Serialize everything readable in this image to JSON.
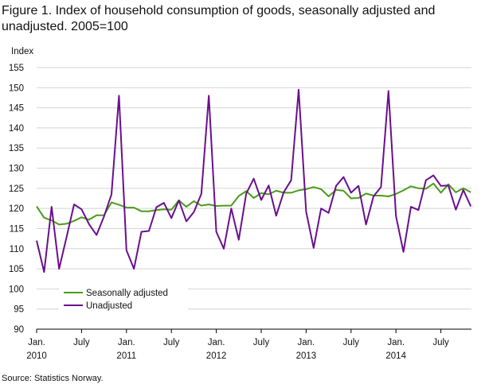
{
  "title": "Figure 1. Index of household consumption of goods, seasonally adjusted and unadjusted. 2005=100",
  "source": "Source: Statistics Norway.",
  "chart_data": {
    "type": "line",
    "title": "Figure 1. Index of household consumption of goods, seasonally adjusted and unadjusted. 2005=100",
    "ylabel": "Index",
    "xlabel": "",
    "ylim": [
      90,
      155
    ],
    "yticks": [
      90,
      95,
      100,
      105,
      110,
      115,
      120,
      125,
      130,
      135,
      140,
      145,
      150,
      155
    ],
    "grid": "horizontal",
    "legend": "bottom-left",
    "x_start": "2010-01",
    "x": [
      "2010-01",
      "2010-02",
      "2010-03",
      "2010-04",
      "2010-05",
      "2010-06",
      "2010-07",
      "2010-08",
      "2010-09",
      "2010-10",
      "2010-11",
      "2010-12",
      "2011-01",
      "2011-02",
      "2011-03",
      "2011-04",
      "2011-05",
      "2011-06",
      "2011-07",
      "2011-08",
      "2011-09",
      "2011-10",
      "2011-11",
      "2011-12",
      "2012-01",
      "2012-02",
      "2012-03",
      "2012-04",
      "2012-05",
      "2012-06",
      "2012-07",
      "2012-08",
      "2012-09",
      "2012-10",
      "2012-11",
      "2012-12",
      "2013-01",
      "2013-02",
      "2013-03",
      "2013-04",
      "2013-05",
      "2013-06",
      "2013-07",
      "2013-08",
      "2013-09",
      "2013-10",
      "2013-11",
      "2013-12",
      "2014-01",
      "2014-02",
      "2014-03",
      "2014-04",
      "2014-05",
      "2014-06",
      "2014-07",
      "2014-08",
      "2014-09",
      "2014-10",
      "2014-11"
    ],
    "x_tick_labels": [
      {
        "line1": "Jan.",
        "line2": "2010",
        "index": 0
      },
      {
        "line1": "July",
        "line2": "",
        "index": 6
      },
      {
        "line1": "Jan.",
        "line2": "2011",
        "index": 12
      },
      {
        "line1": "July",
        "line2": "",
        "index": 18
      },
      {
        "line1": "Jan.",
        "line2": "2012",
        "index": 24
      },
      {
        "line1": "July",
        "line2": "",
        "index": 30
      },
      {
        "line1": "Jan.",
        "line2": "2013",
        "index": 36
      },
      {
        "line1": "July",
        "line2": "",
        "index": 42
      },
      {
        "line1": "Jan.",
        "line2": "2014",
        "index": 48
      },
      {
        "line1": "July",
        "line2": "",
        "index": 54
      }
    ],
    "series": [
      {
        "name": "Seasonally adjusted",
        "color": "#4e9a1a",
        "values": [
          120.5,
          117.7,
          117.0,
          116.0,
          116.2,
          116.9,
          117.8,
          117.2,
          118.3,
          118.3,
          121.5,
          120.9,
          120.2,
          120.2,
          119.3,
          119.3,
          119.6,
          119.8,
          119.7,
          122.0,
          120.4,
          121.8,
          120.7,
          121.0,
          120.6,
          120.7,
          120.7,
          123.1,
          124.3,
          122.6,
          123.8,
          123.5,
          124.4,
          123.9,
          123.9,
          124.5,
          124.8,
          125.3,
          124.8,
          123.0,
          124.6,
          124.4,
          122.5,
          122.6,
          123.7,
          123.2,
          123.2,
          123.0,
          123.6,
          124.5,
          125.5,
          125.0,
          124.9,
          126.2,
          123.9,
          126.0,
          124.0,
          125.0,
          124.0
        ]
      },
      {
        "name": "Unadjusted",
        "color": "#6a0f8f",
        "values": [
          112.0,
          104.2,
          120.4,
          105.0,
          112.9,
          121.0,
          119.8,
          116.1,
          113.4,
          118.0,
          123.5,
          148.0,
          109.6,
          105.0,
          114.2,
          114.4,
          120.3,
          121.4,
          117.6,
          122.0,
          116.8,
          119.1,
          123.6,
          148.0,
          114.2,
          110.0,
          120.0,
          112.2,
          123.7,
          127.4,
          122.1,
          125.7,
          118.2,
          124.0,
          127.0,
          149.5,
          119.2,
          110.2,
          120.0,
          118.9,
          125.6,
          127.8,
          123.9,
          125.6,
          116.0,
          123.0,
          125.3,
          149.2,
          118.1,
          109.2,
          120.4,
          119.6,
          127.0,
          128.2,
          125.6,
          125.7,
          119.7,
          124.6,
          120.5
        ]
      }
    ]
  }
}
